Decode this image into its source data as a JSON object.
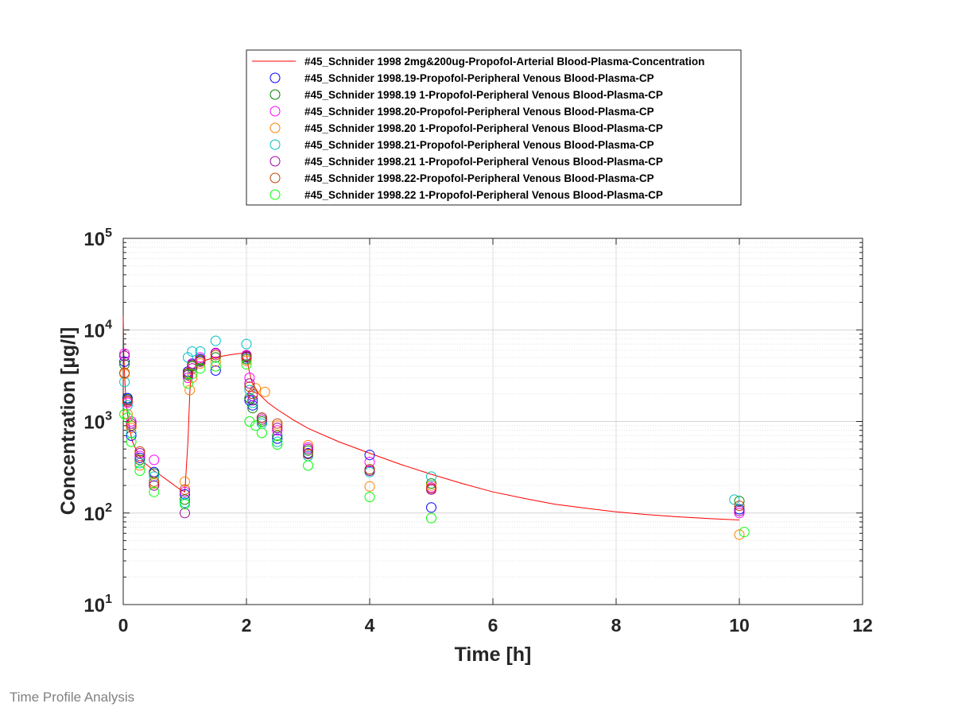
{
  "footer": {
    "label": "Time Profile Analysis"
  },
  "chart_data": {
    "type": "scatter",
    "xlabel": "Time [h]",
    "ylabel": "Concentration [µg/l]",
    "xlim": [
      0,
      12
    ],
    "ylim": [
      10,
      100000
    ],
    "yscale": "log",
    "x_ticks": [
      "0",
      "2",
      "4",
      "6",
      "8",
      "10",
      "12"
    ],
    "y_ticks": [
      {
        "base": "10",
        "exp": "1"
      },
      {
        "base": "10",
        "exp": "2"
      },
      {
        "base": "10",
        "exp": "3"
      },
      {
        "base": "10",
        "exp": "4"
      },
      {
        "base": "10",
        "exp": "5"
      }
    ],
    "grid": true,
    "legend_position": "top",
    "line_series": {
      "name": "#45_Schnider 1998 2mg&200ug-Propofol-Arterial Blood-Plasma-Concentration",
      "color": "#ff0000",
      "x": [
        0,
        0.01,
        0.03,
        0.05,
        0.1,
        0.15,
        0.25,
        0.35,
        0.5,
        0.6,
        0.75,
        0.9,
        1.0,
        1.05,
        1.08,
        1.1,
        1.2,
        1.35,
        1.5,
        1.7,
        1.85,
        2.0,
        2.03,
        2.07,
        2.1,
        2.2,
        2.35,
        2.5,
        2.75,
        3.0,
        3.5,
        4.0,
        4.5,
        5.0,
        5.5,
        6.0,
        6.5,
        7.0,
        7.5,
        8.0,
        8.5,
        9.0,
        9.5,
        10.0
      ],
      "y": [
        14000,
        5000,
        2500,
        1500,
        850,
        600,
        430,
        350,
        290,
        260,
        220,
        185,
        170,
        600,
        2000,
        3500,
        4200,
        4700,
        5000,
        5300,
        5500,
        5600,
        4000,
        3000,
        2600,
        2000,
        1600,
        1350,
        1050,
        840,
        600,
        450,
        340,
        265,
        210,
        170,
        145,
        125,
        113,
        103,
        96,
        91,
        87,
        84
      ]
    },
    "series": [
      {
        "name": "#45_Schnider 1998.19-Propofol-Peripheral Venous Blood-Plasma-CP",
        "color": "#0000ff",
        "points": [
          [
            0.02,
            4500
          ],
          [
            0.07,
            1800
          ],
          [
            0.13,
            700
          ],
          [
            0.27,
            400
          ],
          [
            0.5,
            280
          ],
          [
            1.0,
            160
          ],
          [
            1.05,
            3500
          ],
          [
            1.12,
            4200
          ],
          [
            1.25,
            4800
          ],
          [
            1.5,
            3600
          ],
          [
            2.0,
            5000
          ],
          [
            2.05,
            1700
          ],
          [
            2.1,
            1500
          ],
          [
            2.25,
            1100
          ],
          [
            2.5,
            650
          ],
          [
            3.0,
            450
          ],
          [
            4.0,
            430
          ],
          [
            5.0,
            115
          ],
          [
            10.0,
            110
          ]
        ]
      },
      {
        "name": "#45_Schnider 1998.19 1-Propofol-Peripheral Venous Blood-Plasma-CP",
        "color": "#008000",
        "points": [
          [
            0.02,
            4200
          ],
          [
            0.07,
            1750
          ],
          [
            0.13,
            900
          ],
          [
            0.27,
            380
          ],
          [
            0.5,
            270
          ],
          [
            1.0,
            140
          ],
          [
            1.05,
            3300
          ],
          [
            1.12,
            4000
          ],
          [
            1.25,
            4600
          ],
          [
            1.5,
            5000
          ],
          [
            2.0,
            4800
          ],
          [
            2.05,
            1800
          ],
          [
            2.1,
            1400
          ],
          [
            2.25,
            1000
          ],
          [
            2.5,
            700
          ],
          [
            3.0,
            480
          ],
          [
            4.0,
            300
          ],
          [
            5.0,
            210
          ],
          [
            10.0,
            135
          ]
        ]
      },
      {
        "name": "#45_Schnider 1998.20-Propofol-Peripheral Venous Blood-Plasma-CP",
        "color": "#ff00ff",
        "points": [
          [
            0.02,
            5500
          ],
          [
            0.07,
            1600
          ],
          [
            0.13,
            1000
          ],
          [
            0.27,
            420
          ],
          [
            0.5,
            380
          ],
          [
            1.0,
            170
          ],
          [
            1.05,
            3000
          ],
          [
            1.12,
            4300
          ],
          [
            1.25,
            5000
          ],
          [
            1.5,
            5500
          ],
          [
            2.0,
            5300
          ],
          [
            2.05,
            3000
          ],
          [
            2.1,
            1900
          ],
          [
            2.25,
            1100
          ],
          [
            2.5,
            800
          ],
          [
            3.0,
            520
          ],
          [
            4.0,
            360
          ],
          [
            5.0,
            190
          ],
          [
            10.0,
            100
          ]
        ]
      },
      {
        "name": "#45_Schnider 1998.20 1-Propofol-Peripheral Venous Blood-Plasma-CP",
        "color": "#ff8000",
        "points": [
          [
            0.02,
            3300
          ],
          [
            0.07,
            1200
          ],
          [
            0.13,
            850
          ],
          [
            0.27,
            330
          ],
          [
            0.5,
            210
          ],
          [
            1.0,
            220
          ],
          [
            1.08,
            2200
          ],
          [
            1.12,
            3000
          ],
          [
            1.25,
            4300
          ],
          [
            1.5,
            4500
          ],
          [
            2.0,
            4600
          ],
          [
            2.15,
            2300
          ],
          [
            2.3,
            2100
          ],
          [
            2.5,
            900
          ],
          [
            3.0,
            550
          ],
          [
            4.0,
            195
          ],
          [
            5.0,
            200
          ],
          [
            10.0,
            58
          ]
        ]
      },
      {
        "name": "#45_Schnider 1998.21-Propofol-Peripheral Venous Blood-Plasma-CP",
        "color": "#00c0c0",
        "points": [
          [
            0.02,
            2700
          ],
          [
            0.07,
            1500
          ],
          [
            0.13,
            750
          ],
          [
            0.27,
            350
          ],
          [
            0.5,
            250
          ],
          [
            1.0,
            130
          ],
          [
            1.05,
            5000
          ],
          [
            1.12,
            5800
          ],
          [
            1.25,
            5800
          ],
          [
            1.5,
            7600
          ],
          [
            2.0,
            7000
          ],
          [
            2.05,
            2200
          ],
          [
            2.1,
            1600
          ],
          [
            2.25,
            950
          ],
          [
            2.5,
            600
          ],
          [
            3.0,
            420
          ],
          [
            4.0,
            280
          ],
          [
            5.0,
            250
          ],
          [
            9.92,
            140
          ]
        ]
      },
      {
        "name": "#45_Schnider 1998.21 1-Propofol-Peripheral Venous Blood-Plasma-CP",
        "color": "#a000a0",
        "points": [
          [
            0.02,
            5200
          ],
          [
            0.07,
            1700
          ],
          [
            0.13,
            950
          ],
          [
            0.27,
            450
          ],
          [
            0.5,
            200
          ],
          [
            1.0,
            100
          ],
          [
            1.05,
            3200
          ],
          [
            1.12,
            3800
          ],
          [
            1.25,
            4500
          ],
          [
            1.5,
            5600
          ],
          [
            2.0,
            5200
          ],
          [
            2.05,
            2600
          ],
          [
            2.1,
            1700
          ],
          [
            2.25,
            1050
          ],
          [
            2.5,
            850
          ],
          [
            3.0,
            500
          ],
          [
            4.0,
            290
          ],
          [
            5.0,
            180
          ],
          [
            10.0,
            105
          ]
        ]
      },
      {
        "name": "#45_Schnider 1998.22-Propofol-Peripheral Venous Blood-Plasma-CP",
        "color": "#c04000",
        "points": [
          [
            0.02,
            3400
          ],
          [
            0.07,
            1650
          ],
          [
            0.13,
            900
          ],
          [
            0.27,
            470
          ],
          [
            0.5,
            220
          ],
          [
            1.0,
            180
          ],
          [
            1.05,
            3400
          ],
          [
            1.12,
            4100
          ],
          [
            1.25,
            4700
          ],
          [
            1.5,
            5300
          ],
          [
            2.0,
            5100
          ],
          [
            2.05,
            2400
          ],
          [
            2.1,
            2000
          ],
          [
            2.25,
            1100
          ],
          [
            2.5,
            950
          ],
          [
            3.0,
            440
          ],
          [
            4.0,
            300
          ],
          [
            5.0,
            185
          ],
          [
            10.0,
            120
          ]
        ]
      },
      {
        "name": "#45_Schnider 1998.22 1-Propofol-Peripheral Venous Blood-Plasma-CP",
        "color": "#00ff00",
        "points": [
          [
            0.02,
            1200
          ],
          [
            0.07,
            1100
          ],
          [
            0.13,
            600
          ],
          [
            0.27,
            290
          ],
          [
            0.5,
            170
          ],
          [
            1.0,
            125
          ],
          [
            1.05,
            2600
          ],
          [
            1.12,
            3300
          ],
          [
            1.25,
            3800
          ],
          [
            1.5,
            4000
          ],
          [
            2.0,
            4200
          ],
          [
            2.05,
            1000
          ],
          [
            2.15,
            900
          ],
          [
            2.25,
            750
          ],
          [
            2.5,
            560
          ],
          [
            3.0,
            330
          ],
          [
            4.0,
            150
          ],
          [
            5.0,
            88
          ],
          [
            10.08,
            62
          ]
        ]
      }
    ]
  }
}
